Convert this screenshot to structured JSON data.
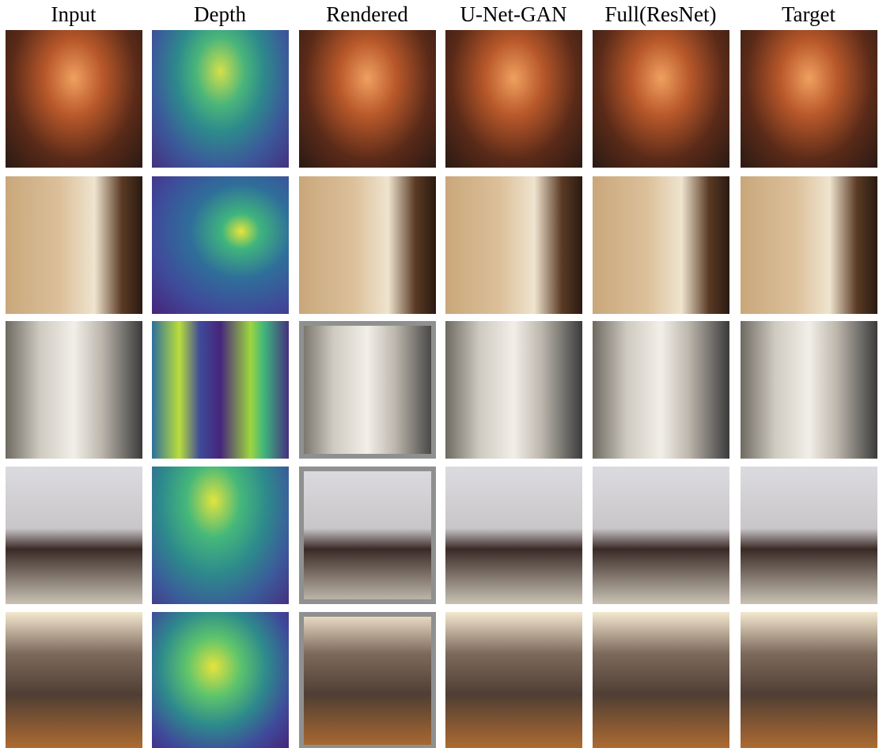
{
  "columns": [
    "Input",
    "Depth",
    "Rendered",
    "U-Net-GAN",
    "Full(ResNet)",
    "Target"
  ]
}
